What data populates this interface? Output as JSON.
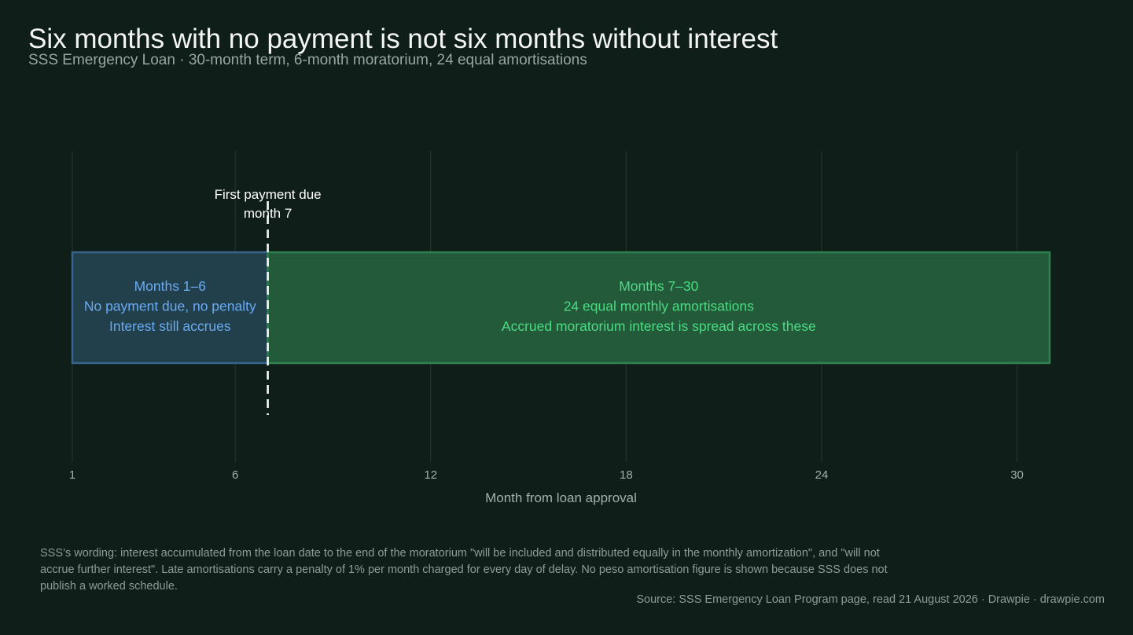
{
  "title": "Six months with no payment is not six months without interest",
  "subtitle": "SSS Emergency Loan · 30-month term, 6-month moratorium, 24 equal amortisations",
  "chart_data": {
    "type": "timeline",
    "xlabel": "Month from loan approval",
    "xlim": [
      1,
      31
    ],
    "x_ticks": [
      1,
      6,
      12,
      18,
      24,
      30
    ],
    "grid": true,
    "segments": [
      {
        "start": 1,
        "end": 7,
        "lines": [
          "Months 1–6",
          "No payment due, no penalty",
          "Interest still accrues"
        ],
        "fill": "#223f4c",
        "stroke": "#36648f",
        "text_color": "#6aabf2"
      },
      {
        "start": 7,
        "end": 31,
        "lines": [
          "Months 7–30",
          "24 equal monthly amortisations",
          "Accrued moratorium interest is spread across these"
        ],
        "fill": "#235a3a",
        "stroke": "#2e8250",
        "text_color": "#4cdb82"
      }
    ],
    "marker": {
      "x": 7,
      "label_lines": [
        "First payment due",
        "month 7"
      ],
      "color": "#ffffff"
    }
  },
  "caption": "SSS’s wording: interest accumulated from the loan date to the end of the moratorium \"will be included and distributed equally in the monthly amortization\", and \"will not accrue further interest\". Late amortisations carry a penalty of 1% per month charged for every day of delay. No peso amortisation figure is shown because SSS does not publish a worked schedule.",
  "source": "Source: SSS Emergency Loan Program page, read 21 August 2026  ·  Drawpie · drawpie.com",
  "colors": {
    "background": "#101e19",
    "grid": "#26382f",
    "tick_text": "#a3b0aa"
  }
}
